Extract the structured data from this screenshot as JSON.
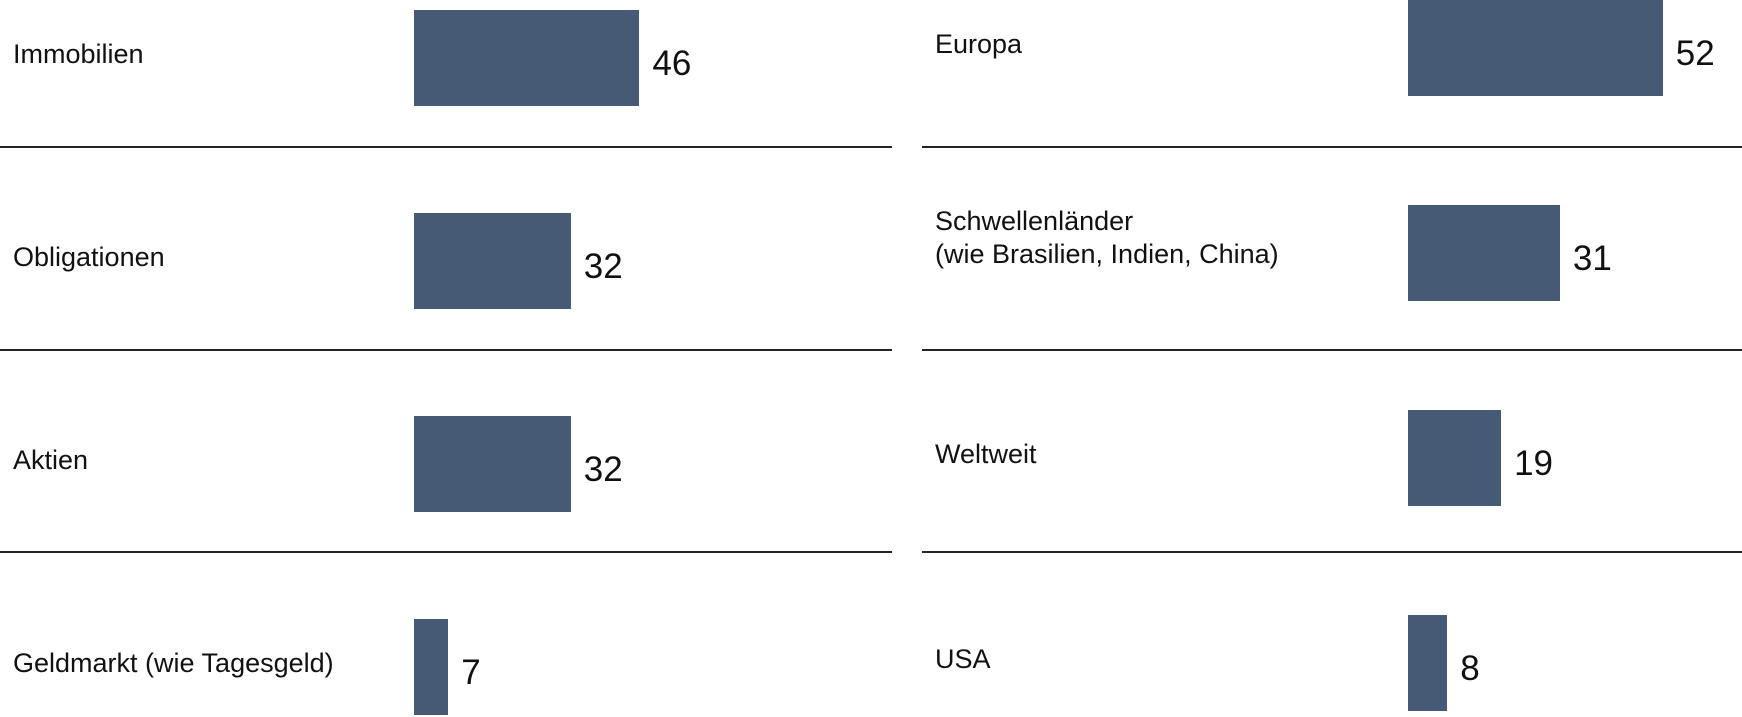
{
  "chart_data": [
    {
      "type": "bar",
      "orientation": "horizontal",
      "color": "#475a75",
      "categories": [
        "Immobilien",
        "Obligationen",
        "Aktien",
        "Geldmarkt (wie Tagesgeld)"
      ],
      "values": [
        46,
        32,
        32,
        7
      ]
    },
    {
      "type": "bar",
      "orientation": "horizontal",
      "color": "#475a75",
      "categories": [
        "Europa",
        "Schwellenländer\n(wie Brasilien, Indien, China)",
        "Weltweit",
        "USA"
      ],
      "values": [
        52,
        31,
        19,
        8
      ]
    }
  ]
}
